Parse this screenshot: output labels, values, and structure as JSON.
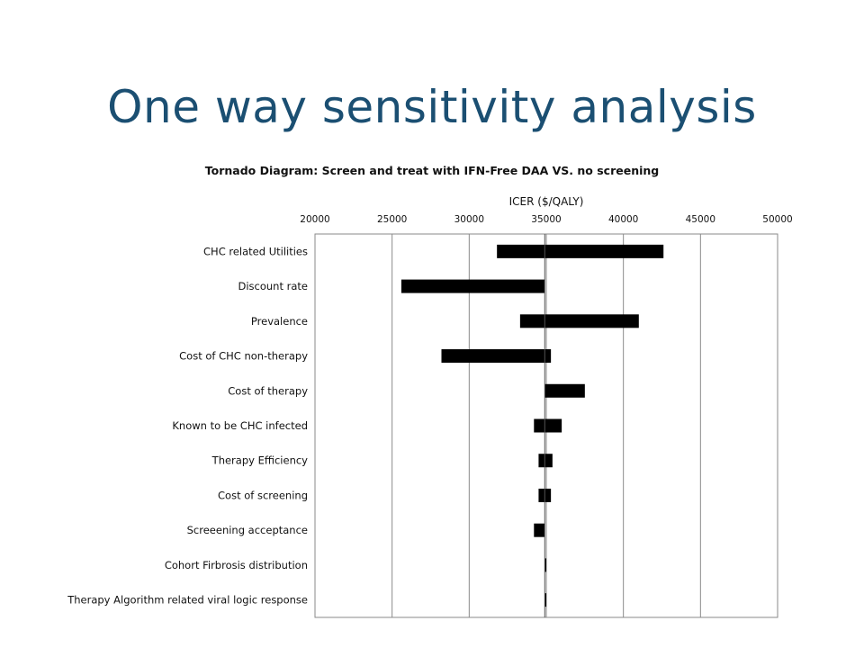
{
  "slide": {
    "title": "One way sensitivity analysis"
  },
  "chart_data": {
    "type": "bar",
    "orientation": "horizontal",
    "subtype": "tornado",
    "title": "Tornado Diagram: Screen and treat with IFN-Free DAA VS. no screening",
    "xlabel": "ICER ($/QALY)",
    "x_axis_position": "top",
    "xlim": [
      20000,
      50000
    ],
    "xticks": [
      "20000",
      "25000",
      "30000",
      "35000",
      "40000",
      "45000",
      "50000"
    ],
    "grid": "vertical",
    "bar_color": "#000000",
    "categories": [
      "CHC related Utilities",
      "Discount rate",
      "Prevalence",
      "Cost of CHC non-therapy",
      "Cost of therapy",
      "Known to be CHC infected",
      "Therapy Efficiency",
      "Cost of screening",
      "Screeening acceptance",
      "Cohort Firbrosis distribution",
      "Therapy Algorithm related viral logic response"
    ],
    "low": [
      31800,
      25600,
      33300,
      28200,
      34900,
      34200,
      34500,
      34500,
      34200,
      34900,
      34900
    ],
    "high": [
      42600,
      34900,
      41000,
      35300,
      37500,
      36000,
      35400,
      35300,
      34900,
      35000,
      35000
    ]
  }
}
